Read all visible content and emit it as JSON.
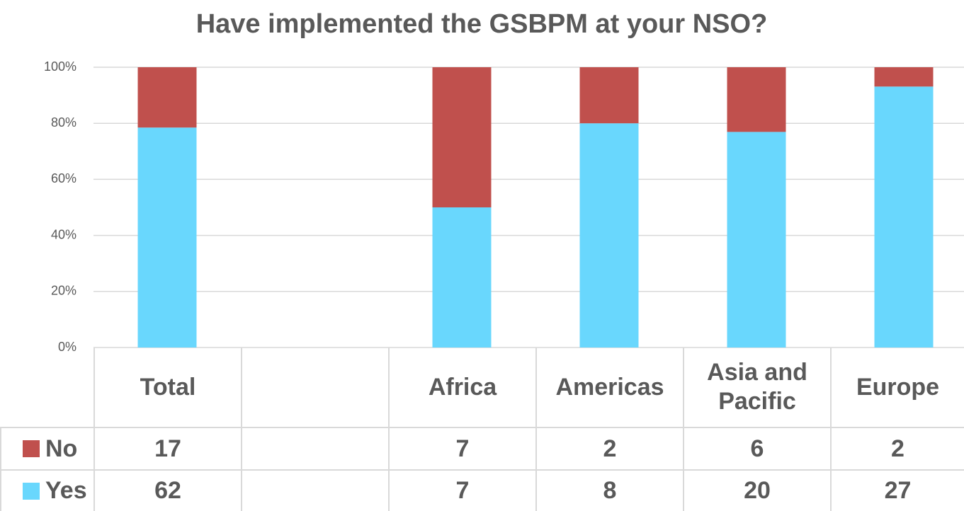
{
  "chart_data": {
    "type": "bar",
    "stacking": "percent",
    "title": "Have implemented the GSBPM at your NSO?",
    "categories": [
      "Total",
      null,
      "Africa",
      "Americas",
      "Asia and Pacific",
      "Europe"
    ],
    "series": [
      {
        "name": "No",
        "color": "#c0504d",
        "values": [
          17,
          null,
          7,
          2,
          6,
          2
        ]
      },
      {
        "name": "Yes",
        "color": "#69d7fd",
        "values": [
          62,
          null,
          7,
          8,
          20,
          27
        ]
      }
    ],
    "ylim": [
      0,
      100
    ],
    "yticks": [
      {
        "value": 0,
        "label": "0%"
      },
      {
        "value": 20,
        "label": "20%"
      },
      {
        "value": 40,
        "label": "40%"
      },
      {
        "value": 60,
        "label": "60%"
      },
      {
        "value": 80,
        "label": "80%"
      },
      {
        "value": 100,
        "label": "100%"
      }
    ],
    "grid": true,
    "data_table": true
  }
}
